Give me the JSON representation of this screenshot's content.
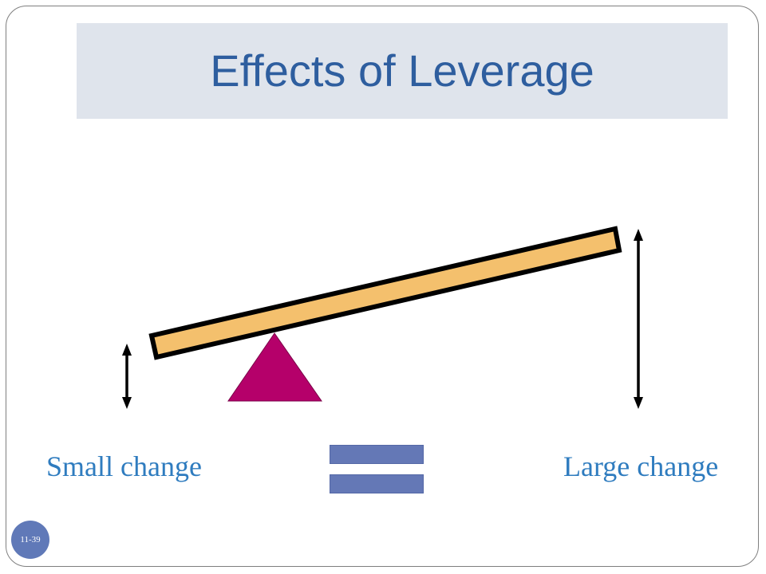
{
  "slide": {
    "title": "Effects of Leverage",
    "slide_number": "11-39"
  },
  "diagram": {
    "left_label": "Small change",
    "right_label": "Large change",
    "colors": {
      "title_text": "#2e5e9f",
      "title_band": "#dfe4ec",
      "lever_fill": "#f4c06d",
      "fulcrum_fill": "#b5006a",
      "label_text": "#2f7cbf",
      "equals_fill": "#6478b6",
      "badge_fill": "#6079b8"
    },
    "icons": [
      "lever-beam",
      "fulcrum-triangle",
      "double-arrow-small",
      "double-arrow-large",
      "equals-sign"
    ]
  }
}
